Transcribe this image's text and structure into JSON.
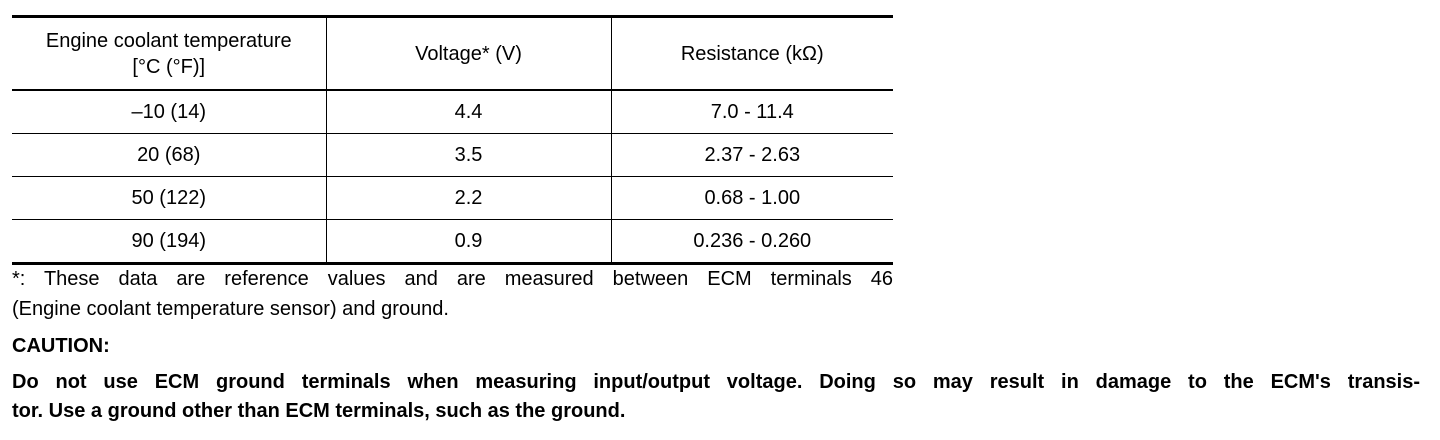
{
  "table": {
    "header": [
      [
        "Engine coolant temperature",
        "[°C (°F)]"
      ],
      [
        "Voltage* (V)"
      ],
      [
        "Resistance (kΩ)"
      ]
    ],
    "rows": [
      [
        "–10 (14)",
        "4.4",
        "7.0 - 11.4"
      ],
      [
        "20 (68)",
        "3.5",
        "2.37 - 2.63"
      ],
      [
        "50 (122)",
        "2.2",
        "0.68 - 1.00"
      ],
      [
        "90 (194)",
        "0.9",
        "0.236 - 0.260"
      ]
    ]
  },
  "footnote": [
    "*: These data are reference values and are measured between ECM terminals 46",
    "(Engine coolant temperature sensor) and ground."
  ],
  "caution": {
    "title": "CAUTION:",
    "lines": [
      "Do not use ECM ground terminals when measuring input/output voltage. Doing so may result in damage to the ECM's transis-",
      "tor. Use a ground other than ECM terminals, such as the ground."
    ]
  }
}
